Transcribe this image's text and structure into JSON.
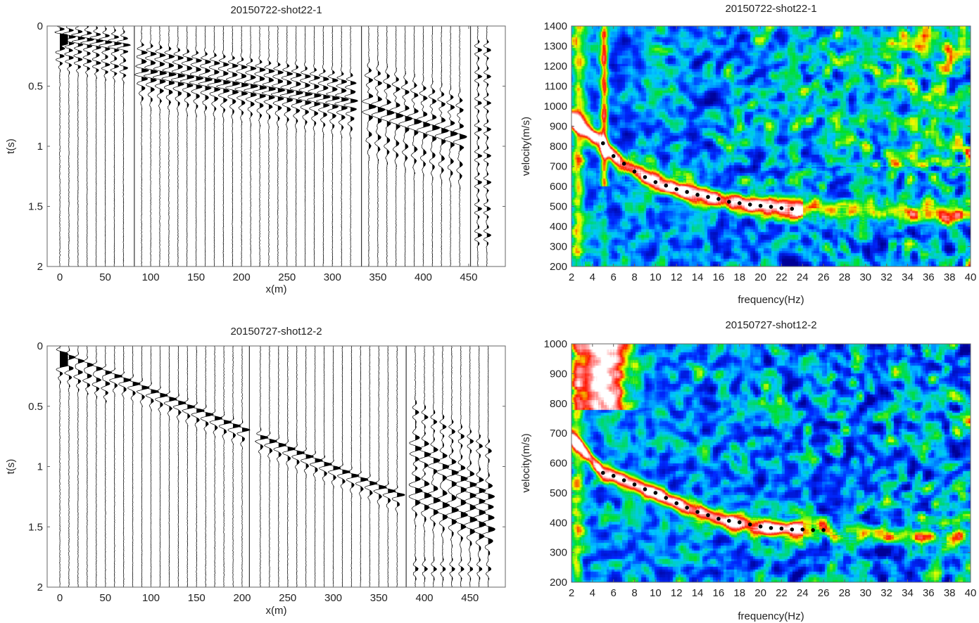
{
  "chart_data": [
    {
      "type": "line",
      "subtype": "seismogram",
      "title": "20150722-shot22-1",
      "xlabel": "x(m)",
      "ylabel": "t(s)",
      "xlim": [
        -14,
        490
      ],
      "ylim": [
        2,
        0
      ],
      "xticks": [
        "0",
        "50",
        "100",
        "150",
        "200",
        "250",
        "300",
        "350",
        "400",
        "450"
      ],
      "yticks": [
        "0",
        "0.5",
        "1",
        "1.5",
        "2"
      ],
      "ytick_values": [
        0,
        0.5,
        1,
        1.5,
        2
      ],
      "xtick_values": [
        0,
        50,
        100,
        150,
        200,
        250,
        300,
        350,
        400,
        450
      ],
      "trace_offsets_m": [
        0,
        10,
        20,
        30,
        40,
        50,
        60,
        70,
        90,
        100,
        110,
        120,
        130,
        140,
        150,
        160,
        170,
        180,
        190,
        200,
        210,
        220,
        230,
        240,
        250,
        260,
        270,
        280,
        290,
        300,
        310,
        320,
        340,
        350,
        360,
        370,
        380,
        390,
        400,
        410,
        420,
        430,
        440,
        460,
        470
      ],
      "segment_boundaries_m": [
        82,
        332,
        452
      ]
    },
    {
      "type": "heatmap",
      "subtype": "dispersion-image",
      "title": "20150722-shot22-1",
      "xlabel": "frequency(Hz)",
      "ylabel": "velocity(m/s)",
      "xlim": [
        2,
        40
      ],
      "ylim": [
        200,
        1400
      ],
      "xticks": [
        "2",
        "4",
        "6",
        "8",
        "10",
        "12",
        "14",
        "16",
        "18",
        "20",
        "22",
        "24",
        "26",
        "28",
        "30",
        "32",
        "34",
        "36",
        "38",
        "40"
      ],
      "yticks": [
        "200",
        "300",
        "400",
        "500",
        "600",
        "700",
        "800",
        "900",
        "1000",
        "1100",
        "1200",
        "1300",
        "1400"
      ],
      "picked_curve": {
        "frequency_hz": [
          5,
          6,
          7,
          8,
          9,
          10,
          11,
          12,
          13,
          14,
          15,
          16,
          17,
          18,
          19,
          20,
          21,
          22,
          23
        ],
        "velocity_ms": [
          815,
          751,
          713,
          674,
          646,
          621,
          604,
          586,
          572,
          558,
          547,
          537,
          523,
          516,
          509,
          503,
          498,
          491,
          488
        ]
      }
    },
    {
      "type": "line",
      "subtype": "seismogram",
      "title": "20150727-shot12-2",
      "xlabel": "x(m)",
      "ylabel": "t(s)",
      "xlim": [
        -14,
        490
      ],
      "ylim": [
        2,
        0
      ],
      "xticks": [
        "0",
        "50",
        "100",
        "150",
        "200",
        "250",
        "300",
        "350",
        "400",
        "450"
      ],
      "yticks": [
        "0",
        "0.5",
        "1",
        "1.5",
        "2"
      ],
      "ytick_values": [
        0,
        0.5,
        1,
        1.5,
        2
      ],
      "xtick_values": [
        0,
        50,
        100,
        150,
        200,
        250,
        300,
        350,
        400,
        450
      ],
      "trace_offsets_m": [
        0,
        10,
        20,
        30,
        40,
        50,
        60,
        70,
        80,
        90,
        100,
        110,
        120,
        130,
        140,
        150,
        160,
        170,
        180,
        190,
        200,
        220,
        230,
        240,
        250,
        260,
        270,
        280,
        290,
        300,
        310,
        320,
        330,
        340,
        350,
        360,
        370,
        390,
        400,
        410,
        420,
        430,
        440,
        450,
        460,
        470
      ],
      "segment_boundaries_m": [
        208,
        380
      ]
    },
    {
      "type": "heatmap",
      "subtype": "dispersion-image",
      "title": "20150727-shot12-2",
      "xlabel": "frequency(Hz)",
      "ylabel": "velocity(m/s)",
      "xlim": [
        2,
        40
      ],
      "ylim": [
        200,
        1000
      ],
      "xticks": [
        "2",
        "4",
        "6",
        "8",
        "10",
        "12",
        "14",
        "16",
        "18",
        "20",
        "22",
        "24",
        "26",
        "28",
        "30",
        "32",
        "34",
        "36",
        "38",
        "40"
      ],
      "yticks": [
        "200",
        "300",
        "400",
        "500",
        "600",
        "700",
        "800",
        "900",
        "1000"
      ],
      "picked_curve": {
        "frequency_hz": [
          5,
          6,
          7,
          8,
          9,
          10,
          11,
          12,
          13,
          14,
          15,
          16,
          17,
          18,
          19,
          20,
          21,
          22,
          23,
          24,
          25,
          26
        ],
        "velocity_ms": [
          567,
          557,
          542,
          528,
          512,
          500,
          483,
          465,
          450,
          436,
          425,
          413,
          406,
          401,
          394,
          387,
          382,
          380,
          377,
          377,
          375,
          375
        ]
      }
    }
  ],
  "colors": {
    "axis": "#555555",
    "trace": "#000000",
    "dot": "#000000"
  }
}
